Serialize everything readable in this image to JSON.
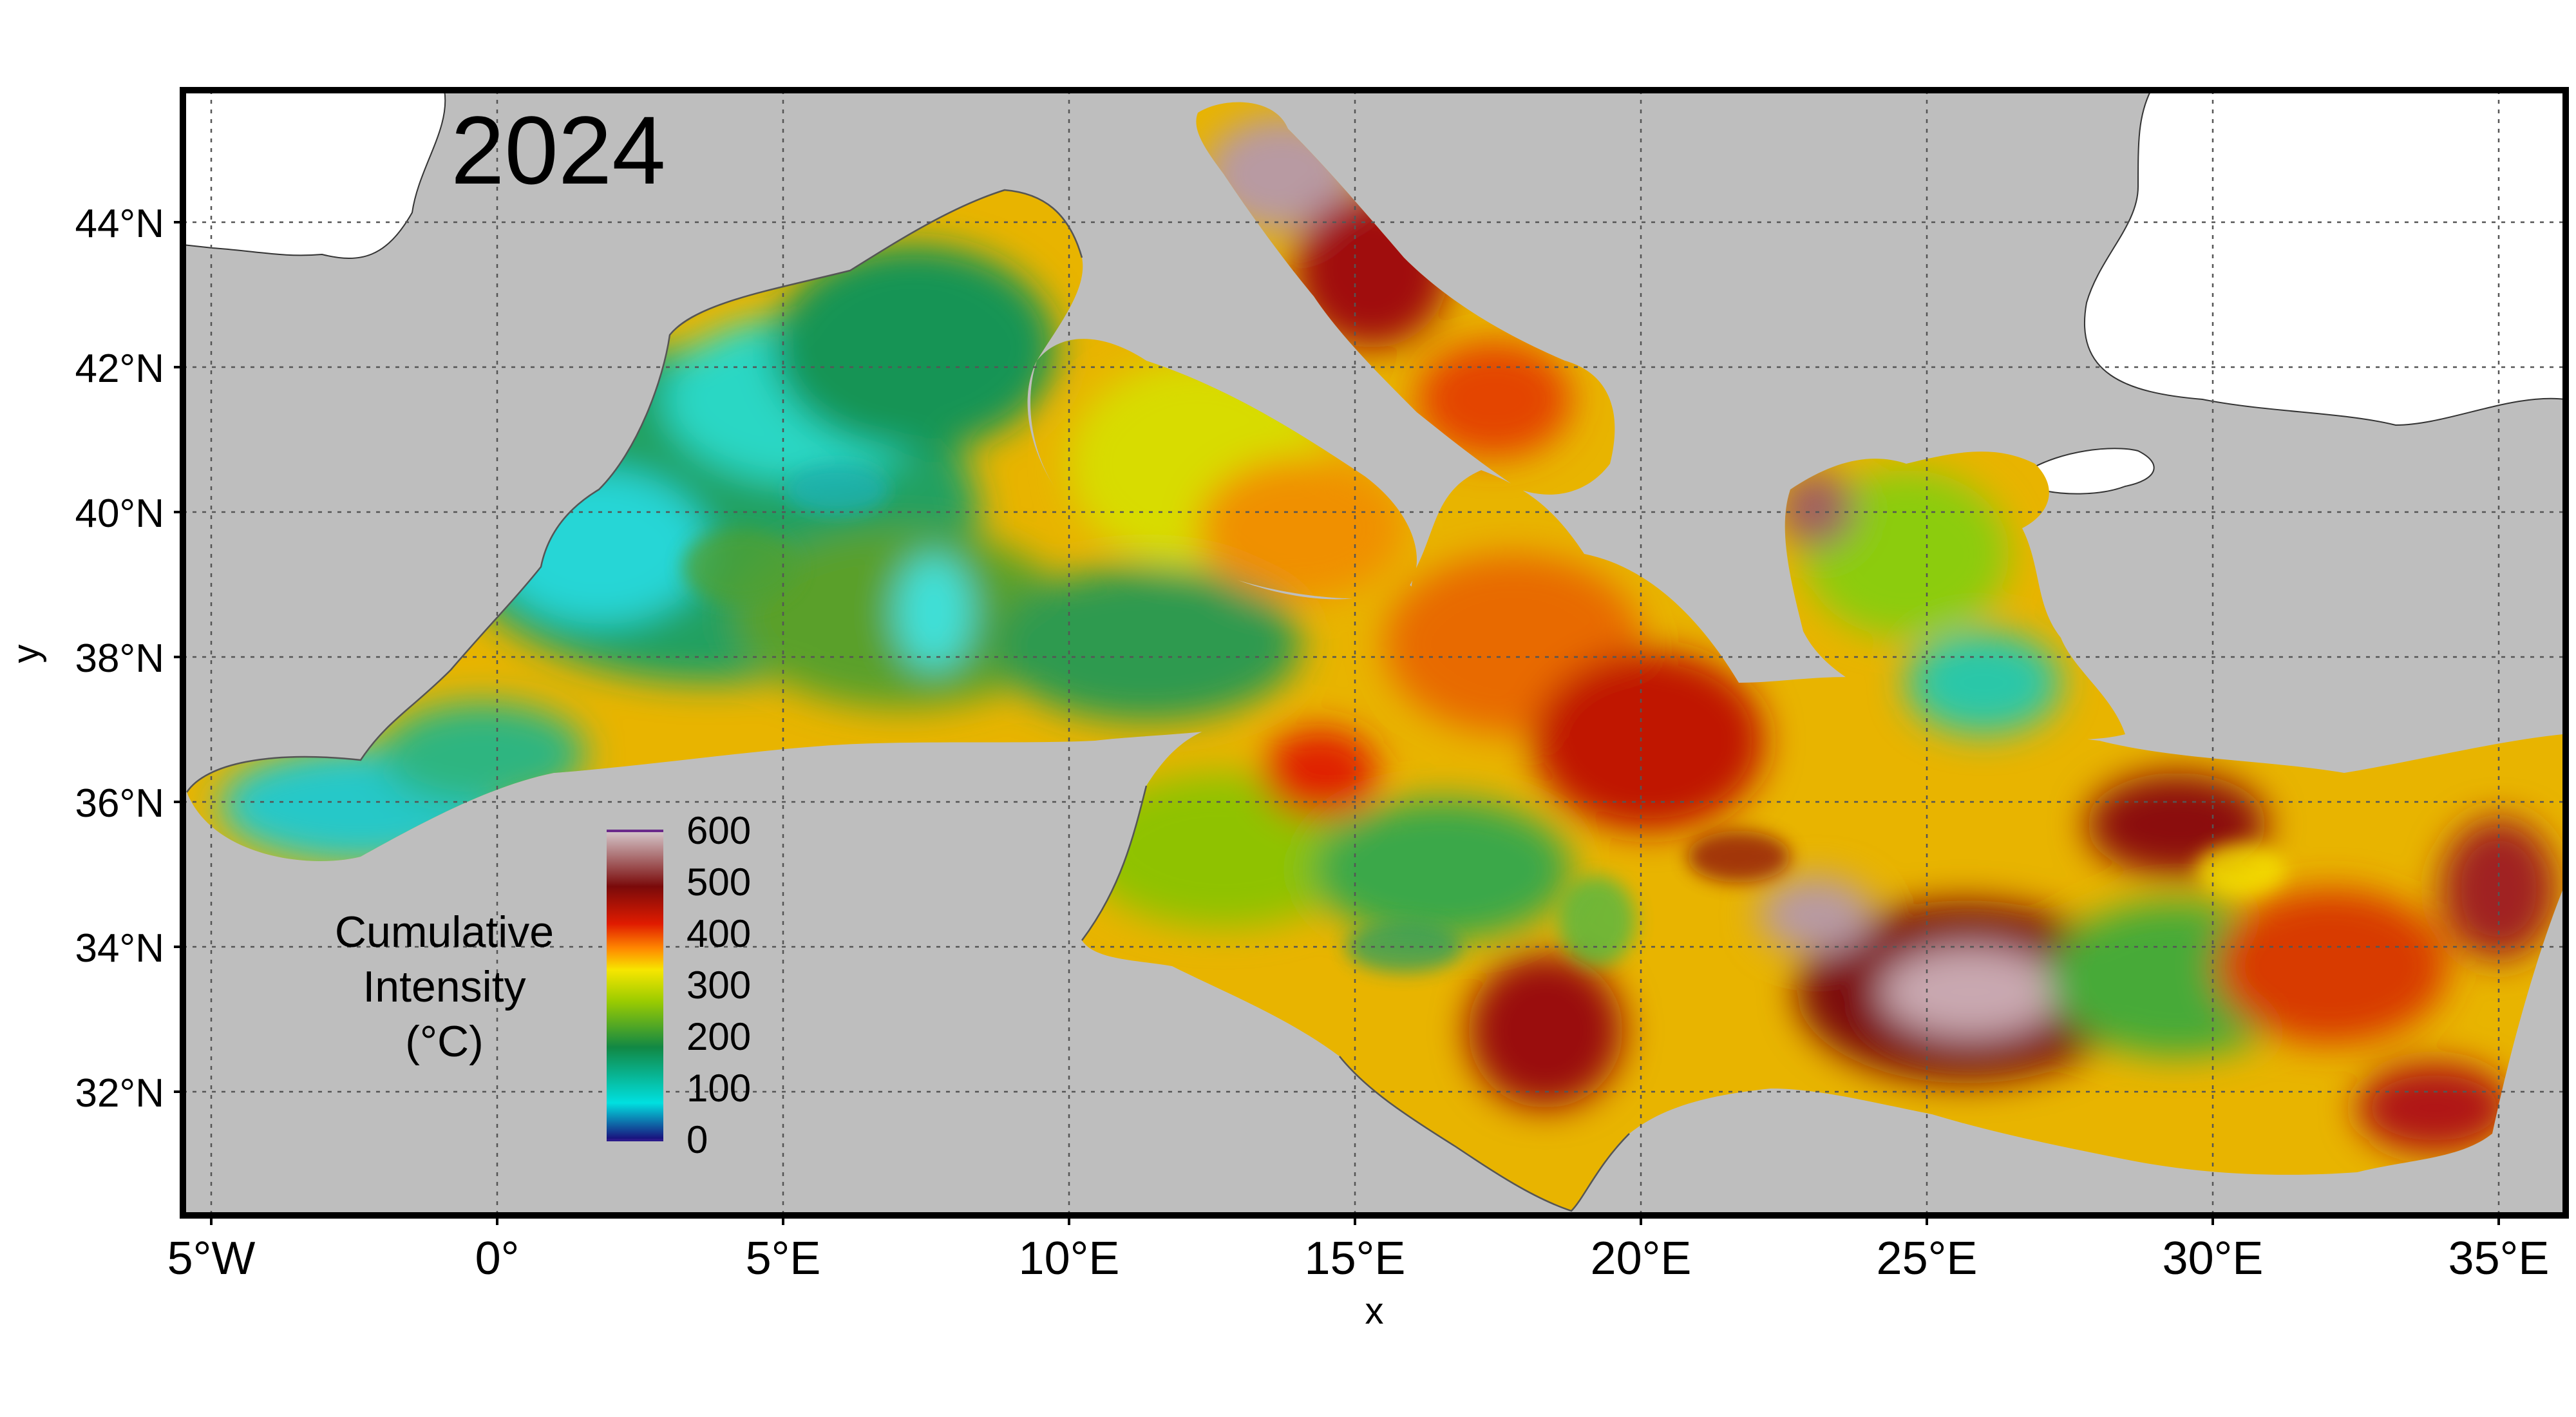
{
  "map": {
    "year_label": "2024",
    "x_axis_title": "x",
    "y_axis_title": "y",
    "lon_ticks": [
      "5°W",
      "0°",
      "5°E",
      "10°E",
      "15°E",
      "20°E",
      "25°E",
      "30°E",
      "35°E"
    ],
    "lat_ticks": [
      "44°N",
      "42°N",
      "40°N",
      "38°N",
      "36°N",
      "34°N",
      "32°N"
    ],
    "lon_range": [
      -5.5,
      36.2
    ],
    "lat_range": [
      30.3,
      45.8
    ],
    "background_color": "#bebebe",
    "land_color": "#ffffff",
    "grid": true,
    "legend": {
      "title_lines": [
        "Cumulative",
        "Intensity",
        "(°C)"
      ],
      "tick_labels": [
        "600",
        "500",
        "400",
        "300",
        "200",
        "100",
        "0"
      ],
      "scale_min": 0,
      "scale_max": 600,
      "color_stops": [
        "#1a0a7a",
        "#00e0e0",
        "#118844",
        "#9ccc00",
        "#f7e600",
        "#ff8800",
        "#e01b00",
        "#7a0a0a",
        "#d6c8cc"
      ],
      "placement": "bottom-left"
    },
    "pattern_summary": {
      "western_basin": "mostly 100-250 (cyan/green)",
      "tyrrhenian_central": "250-400 (yellow/orange)",
      "adriatic_ionian_levantine": "350-600 (red/dark red/grey-pink)"
    }
  }
}
